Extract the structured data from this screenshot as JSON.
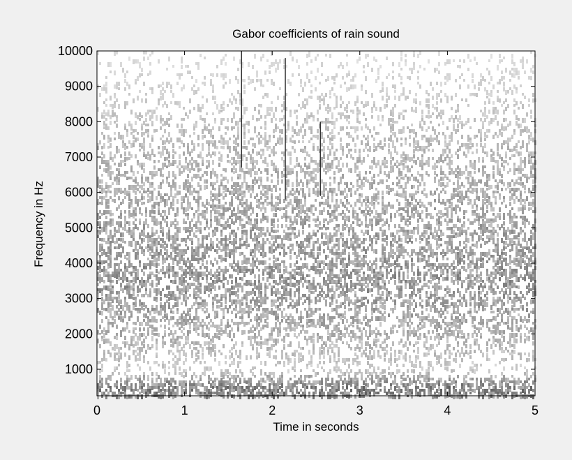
{
  "chart_data": {
    "type": "heatmap",
    "title": "Gabor coefficients of rain sound",
    "xlabel": "Time in seconds",
    "ylabel": "Frequency in Hz",
    "xlim": [
      0,
      5
    ],
    "ylim": [
      250,
      10000
    ],
    "x_ticks": [
      0,
      1,
      2,
      3,
      4,
      5
    ],
    "x_tick_labels": [
      "0",
      "1",
      "2",
      "3",
      "4",
      "5"
    ],
    "y_ticks": [
      1000,
      2000,
      3000,
      4000,
      5000,
      6000,
      7000,
      8000,
      9000,
      10000
    ],
    "y_tick_labels": [
      "1000",
      "2000",
      "3000",
      "4000",
      "5000",
      "6000",
      "7000",
      "8000",
      "9000",
      "10000"
    ],
    "grid": false,
    "colormap": "grayscale",
    "colors": {
      "background": "#f0f0f0",
      "plot_area": "#ffffff",
      "ink": "#000000"
    },
    "coefficient_density_by_frequency": [
      {
        "frequency_hz": 500,
        "relative_magnitude": 0.8
      },
      {
        "frequency_hz": 1000,
        "relative_magnitude": 0.25
      },
      {
        "frequency_hz": 2000,
        "relative_magnitude": 0.45
      },
      {
        "frequency_hz": 3500,
        "relative_magnitude": 0.65
      },
      {
        "frequency_hz": 5000,
        "relative_magnitude": 0.55
      },
      {
        "frequency_hz": 7000,
        "relative_magnitude": 0.4
      },
      {
        "frequency_hz": 9000,
        "relative_magnitude": 0.2
      },
      {
        "frequency_hz": 10000,
        "relative_magnitude": 0.12
      }
    ],
    "transients": [
      {
        "time_s": 1.65,
        "from_hz": 6700,
        "to_hz": 10000
      },
      {
        "time_s": 2.15,
        "from_hz": 5800,
        "to_hz": 9800
      },
      {
        "time_s": 2.55,
        "from_hz": 5900,
        "to_hz": 8000
      }
    ]
  }
}
